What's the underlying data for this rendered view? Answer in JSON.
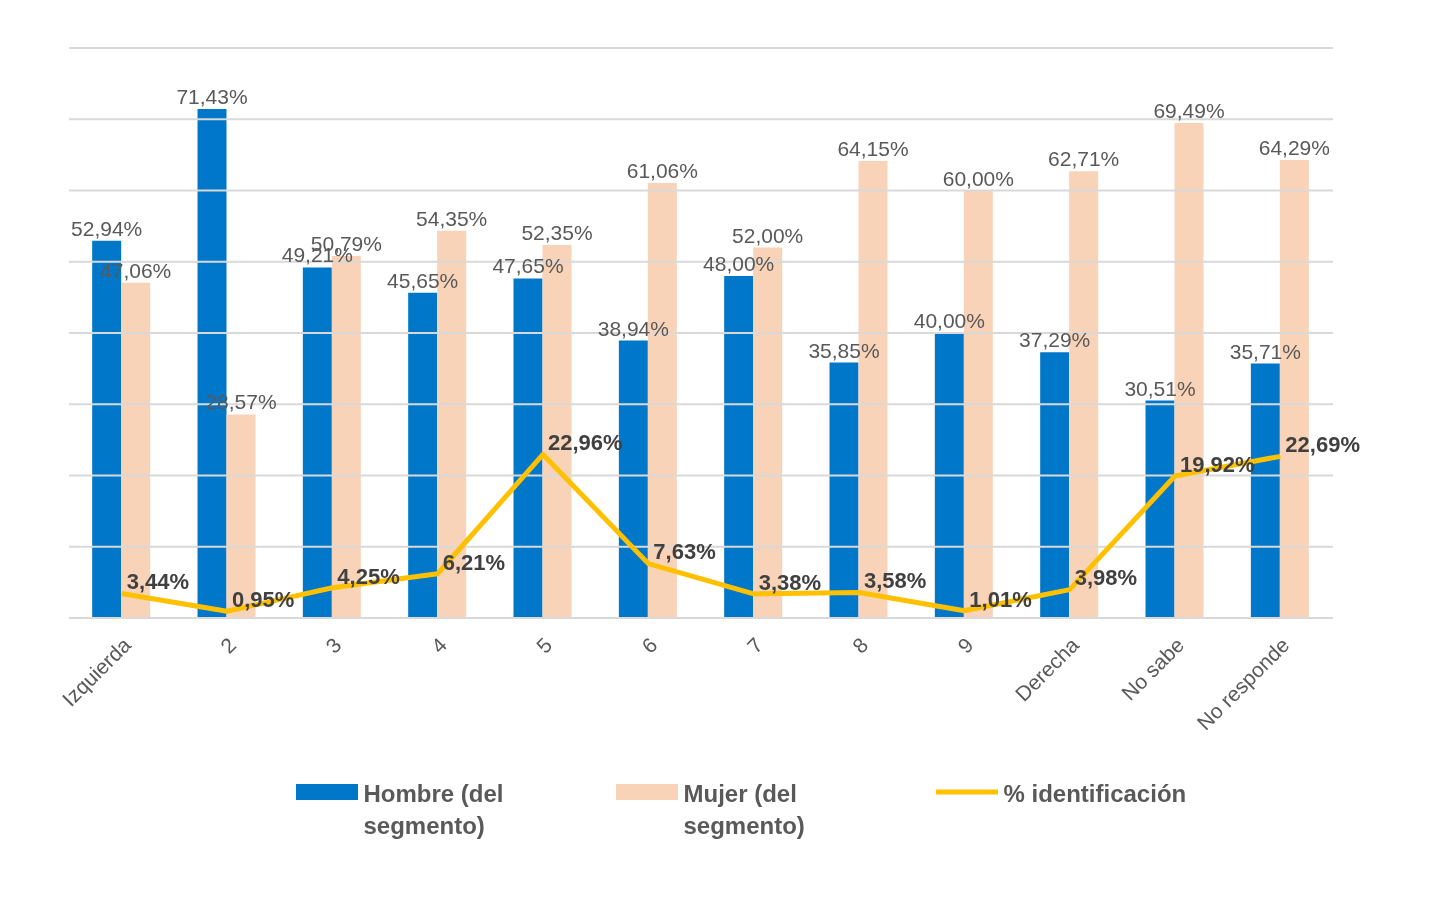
{
  "chart_data": {
    "type": "bar",
    "categories": [
      "Izquierda",
      "2",
      "3",
      "4",
      "5",
      "6",
      "7",
      "8",
      "9",
      "Derecha",
      "No sabe",
      "No responde"
    ],
    "ylim": [
      0,
      80
    ],
    "yticks": [
      {
        "value": 0,
        "label": null
      },
      {
        "value": 10,
        "label": null
      },
      {
        "value": 20,
        "label": null
      },
      {
        "value": 30,
        "label": null
      },
      {
        "value": 40,
        "label": null
      },
      {
        "value": 50,
        "label": null
      },
      {
        "value": 60,
        "label": null
      },
      {
        "value": 70,
        "label": null
      },
      {
        "value": 80,
        "label": null
      }
    ],
    "grid": "y",
    "tick_labels": "x",
    "legend": "bottom",
    "marker": "none",
    "line_style": "solid",
    "series": [
      {
        "name": "Hombre (del segmento)",
        "color": "#0077c8",
        "values": [
          52.94,
          71.43,
          49.21,
          45.65,
          47.65,
          38.94,
          48.0,
          35.85,
          40.0,
          37.29,
          30.51,
          35.71
        ],
        "value_labels": [
          "52,94%",
          "71,43%",
          "49,21%",
          "45,65%",
          "47,65%",
          "38,94%",
          "48,00%",
          "35,85%",
          "40,00%",
          "37,29%",
          "30,51%",
          "35,71%"
        ]
      },
      {
        "name": "Mujer (del segmento)",
        "color": "#f9d3b8",
        "values": [
          47.06,
          28.57,
          50.79,
          54.35,
          52.35,
          61.06,
          52.0,
          64.15,
          60.0,
          62.71,
          69.49,
          64.29
        ],
        "value_labels": [
          "47,06%",
          "28,57%",
          "50,79%",
          "54,35%",
          "52,35%",
          "61,06%",
          "52,00%",
          "64,15%",
          "60,00%",
          "62,71%",
          "69,49%",
          "64,29%"
        ]
      },
      {
        "name": "% identificación",
        "type": "line",
        "color": "#ffc000",
        "values": [
          3.44,
          0.95,
          4.25,
          6.21,
          22.96,
          7.63,
          3.38,
          3.58,
          1.01,
          3.98,
          19.92,
          22.69
        ],
        "value_labels": [
          "3,44%",
          "0,95%",
          "4,25%",
          "6,21%",
          "22,96%",
          "7,63%",
          "3,38%",
          "3,58%",
          "1,01%",
          "3,98%",
          "19,92%",
          "22,69%"
        ]
      }
    ]
  }
}
